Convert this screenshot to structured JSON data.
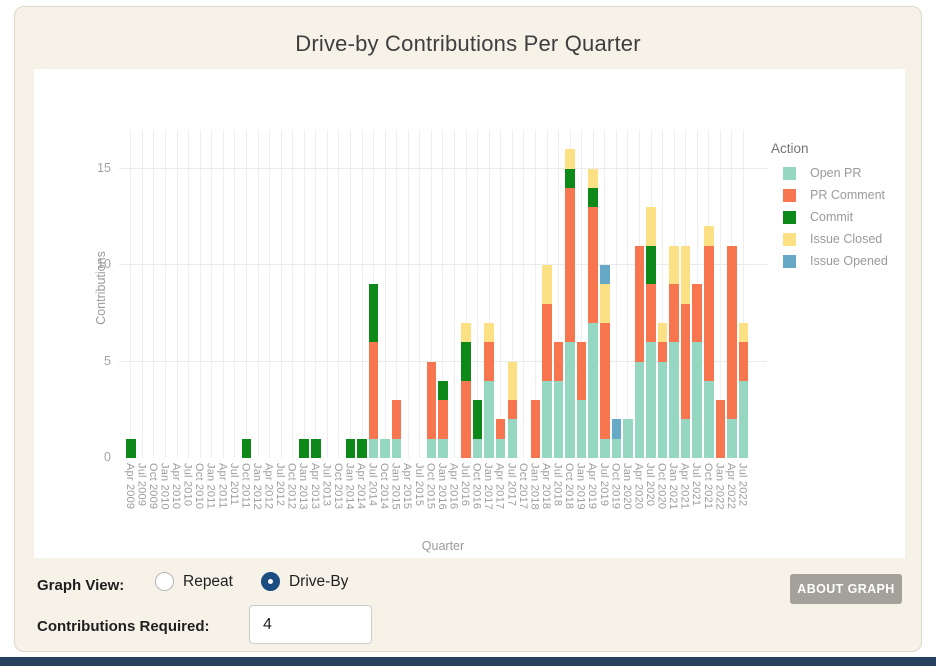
{
  "title": "Drive-by Contributions Per Quarter",
  "controls": {
    "graph_view_label": "Graph View:",
    "radios": [
      {
        "label": "Repeat",
        "selected": false
      },
      {
        "label": "Drive-By",
        "selected": true
      }
    ],
    "contributions_label": "Contributions Required:",
    "contributions_value": "4",
    "about_button": "ABOUT GRAPH"
  },
  "chart_data": {
    "type": "bar",
    "stacked": true,
    "title": "Drive-by Contributions Per Quarter",
    "xlabel": "Quarter",
    "ylabel": "Contributions",
    "yticks": [
      0,
      5,
      10,
      15
    ],
    "ylim": [
      0,
      17
    ],
    "grid": true,
    "legend_position": "right",
    "legend_title": "Action",
    "categories": [
      "Apr 2009",
      "Jul 2009",
      "Oct 2009",
      "Jan 2010",
      "Apr 2010",
      "Jul 2010",
      "Oct 2010",
      "Jan 2011",
      "Apr 2011",
      "Jul 2011",
      "Oct 2011",
      "Jan 2012",
      "Apr 2012",
      "Jul 2012",
      "Oct 2012",
      "Jan 2013",
      "Apr 2013",
      "Jul 2013",
      "Oct 2013",
      "Jan 2014",
      "Apr 2014",
      "Jul 2014",
      "Oct 2014",
      "Jan 2015",
      "Apr 2015",
      "Jul 2015",
      "Oct 2015",
      "Jan 2016",
      "Apr 2016",
      "Jul 2016",
      "Oct 2016",
      "Jan 2017",
      "Apr 2017",
      "Jul 2017",
      "Oct 2017",
      "Jan 2018",
      "Apr 2018",
      "Jul 2018",
      "Oct 2018",
      "Jan 2019",
      "Apr 2019",
      "Jul 2019",
      "Oct 2019",
      "Jan 2020",
      "Apr 2020",
      "Jul 2020",
      "Oct 2020",
      "Jan 2021",
      "Apr 2021",
      "Jul 2021",
      "Oct 2021",
      "Jan 2022",
      "Apr 2022",
      "Jul 2022"
    ],
    "series": [
      {
        "name": "Open PR",
        "color": "#95d7c0",
        "values": [
          0,
          0,
          0,
          0,
          0,
          0,
          0,
          0,
          0,
          0,
          0,
          0,
          0,
          0,
          0,
          0,
          0,
          0,
          0,
          0,
          0,
          1,
          1,
          1,
          0,
          0,
          1,
          1,
          0,
          0,
          1,
          4,
          1,
          2,
          0,
          0,
          4,
          4,
          6,
          3,
          7,
          1,
          1,
          2,
          5,
          6,
          5,
          6,
          2,
          6,
          4,
          0,
          2,
          4
        ]
      },
      {
        "name": "PR Comment",
        "color": "#f7764f",
        "values": [
          0,
          0,
          0,
          0,
          0,
          0,
          0,
          0,
          0,
          0,
          0,
          0,
          0,
          0,
          0,
          0,
          0,
          0,
          0,
          0,
          0,
          5,
          0,
          2,
          0,
          0,
          4,
          2,
          0,
          4,
          0,
          2,
          1,
          1,
          0,
          3,
          4,
          2,
          8,
          3,
          6,
          6,
          0,
          0,
          6,
          3,
          1,
          3,
          6,
          3,
          7,
          3,
          9,
          2
        ]
      },
      {
        "name": "Commit",
        "color": "#0c8918",
        "values": [
          1,
          0,
          0,
          0,
          0,
          0,
          0,
          0,
          0,
          0,
          1,
          0,
          0,
          0,
          0,
          1,
          1,
          0,
          0,
          1,
          1,
          3,
          0,
          0,
          0,
          0,
          0,
          1,
          0,
          2,
          2,
          0,
          0,
          0,
          0,
          0,
          0,
          0,
          1,
          0,
          1,
          0,
          0,
          0,
          0,
          2,
          0,
          0,
          0,
          0,
          0,
          0,
          0,
          0
        ]
      },
      {
        "name": "Issue Closed",
        "color": "#fbe183",
        "values": [
          0,
          0,
          0,
          0,
          0,
          0,
          0,
          0,
          0,
          0,
          0,
          0,
          0,
          0,
          0,
          0,
          0,
          0,
          0,
          0,
          0,
          0,
          0,
          0,
          0,
          0,
          0,
          0,
          0,
          1,
          0,
          1,
          0,
          2,
          0,
          0,
          2,
          0,
          1,
          0,
          1,
          2,
          0,
          0,
          0,
          2,
          1,
          2,
          3,
          0,
          1,
          0,
          0,
          1
        ]
      },
      {
        "name": "Issue Opened",
        "color": "#65a9c6",
        "values": [
          0,
          0,
          0,
          0,
          0,
          0,
          0,
          0,
          0,
          0,
          0,
          0,
          0,
          0,
          0,
          0,
          0,
          0,
          0,
          0,
          0,
          0,
          0,
          0,
          0,
          0,
          0,
          0,
          0,
          0,
          0,
          0,
          0,
          0,
          0,
          0,
          0,
          0,
          0,
          0,
          0,
          1,
          1,
          0,
          0,
          0,
          0,
          0,
          0,
          0,
          0,
          0,
          0,
          0
        ]
      }
    ]
  }
}
